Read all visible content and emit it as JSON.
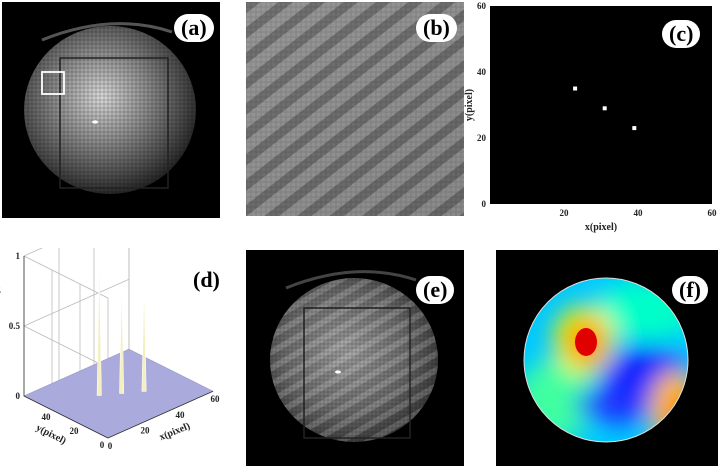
{
  "panels": {
    "a": {
      "label": "(a)"
    },
    "b": {
      "label": "(b)"
    },
    "c": {
      "label": "(c)"
    },
    "d": {
      "label": "(d)"
    },
    "e": {
      "label": "(e)"
    },
    "f": {
      "label": "(f)"
    }
  },
  "colors": {
    "figure_bg": "#000000",
    "surface": "#aaaadd",
    "peak": "#f4efc0"
  },
  "chart_data": [
    {
      "type": "scatter",
      "panel": "c",
      "xlabel": "x(pixel)",
      "ylabel": "y(pixel)",
      "xlim": [
        0,
        60
      ],
      "ylim": [
        0,
        60
      ],
      "xticks": [
        20,
        40,
        60
      ],
      "yticks": [
        0,
        20,
        40,
        60
      ],
      "grid": false,
      "points": [
        {
          "x": 23,
          "y": 35
        },
        {
          "x": 31,
          "y": 29
        },
        {
          "x": 39,
          "y": 23
        }
      ]
    },
    {
      "type": "surface",
      "panel": "d",
      "xlabel": "x(pixel)",
      "ylabel": "y(pixel)",
      "zlabel": "z(relative intensity)",
      "xlim": [
        0,
        60
      ],
      "ylim": [
        0,
        60
      ],
      "zlim": [
        0,
        1
      ],
      "xticks": [
        0,
        20,
        40,
        60
      ],
      "yticks": [
        0,
        20,
        40
      ],
      "zticks": [
        0,
        0.5,
        1
      ],
      "peaks": [
        {
          "x": 23,
          "y": 35,
          "z": 0.95
        },
        {
          "x": 31,
          "y": 29,
          "z": 0.75
        },
        {
          "x": 39,
          "y": 23,
          "z": 0.75
        }
      ]
    }
  ]
}
